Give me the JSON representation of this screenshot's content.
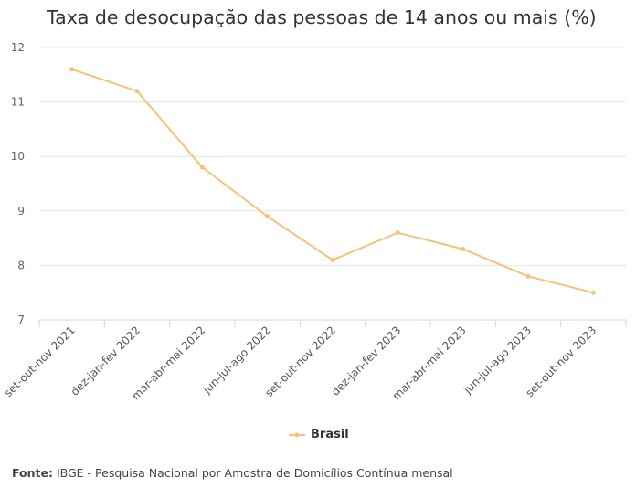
{
  "chart_data": {
    "type": "line",
    "title": "Taxa de desocupação das pessoas de 14 anos ou mais (%)",
    "categories": [
      "set-out-nov 2021",
      "dez-jan-fev 2022",
      "mar-abr-mai 2022",
      "jun-jul-ago 2022",
      "set-out-nov 2022",
      "dez-jan-fev 2023",
      "mar-abr-mai 2023",
      "jun-jul-ago 2023",
      "set-out-nov 2023"
    ],
    "series": [
      {
        "name": "Brasil",
        "values": [
          11.6,
          11.2,
          9.8,
          8.9,
          8.1,
          8.6,
          8.3,
          7.8,
          7.5
        ],
        "color": "#f5c27a"
      }
    ],
    "ylim": [
      7,
      12
    ],
    "yticks": [
      7,
      8,
      9,
      10,
      11,
      12
    ],
    "grid": true,
    "legend": "bottom-center"
  },
  "source": {
    "label": "Fonte:",
    "text": " IBGE - Pesquisa Nacional por Amostra de Domicílios Contínua mensal"
  }
}
